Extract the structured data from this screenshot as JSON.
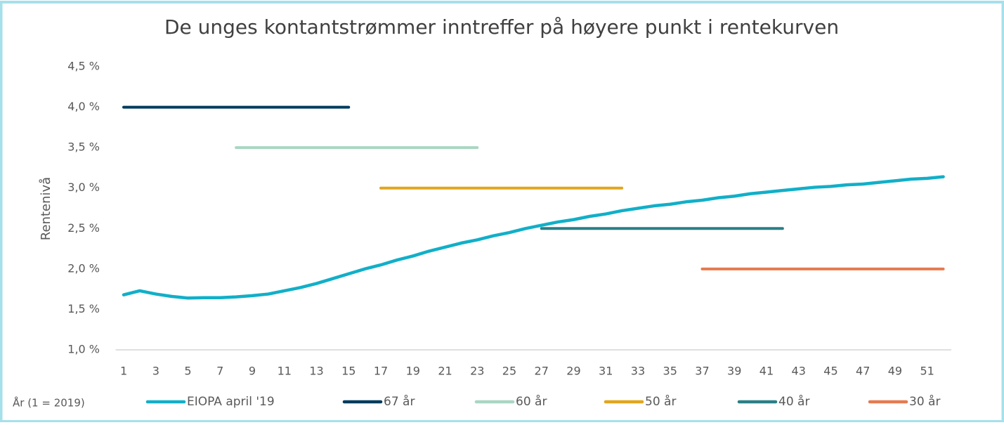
{
  "chart_data": {
    "type": "line",
    "title": "De unges kontantstrømmer inntreffer på høyere punkt i rentekurven",
    "x_label": "År (1 = 2019)",
    "y_label": "Rentenivå",
    "xlim": [
      0.5,
      52.5
    ],
    "xticks": [
      1,
      3,
      5,
      7,
      9,
      11,
      13,
      15,
      17,
      19,
      21,
      23,
      25,
      27,
      29,
      31,
      33,
      35,
      37,
      39,
      41,
      43,
      45,
      47,
      49,
      51
    ],
    "ylim": [
      1.0,
      4.5
    ],
    "yticks": [
      {
        "value": 1.0,
        "label": "1,0 %"
      },
      {
        "value": 1.5,
        "label": "1,5 %"
      },
      {
        "value": 2.0,
        "label": "2,0 %"
      },
      {
        "value": 2.5,
        "label": "2,5 %"
      },
      {
        "value": 3.0,
        "label": "3,0 %"
      },
      {
        "value": 3.5,
        "label": "3,5 %"
      },
      {
        "value": 4.0,
        "label": "4,0 %"
      },
      {
        "value": 4.5,
        "label": "4,5 %"
      }
    ],
    "grid": false,
    "legend": "bottom",
    "series": [
      {
        "name": "EIOPA april '19",
        "color": "#12afc8",
        "x": [
          1,
          2,
          3,
          4,
          5,
          6,
          7,
          8,
          9,
          10,
          11,
          12,
          13,
          14,
          15,
          16,
          17,
          18,
          19,
          20,
          21,
          22,
          23,
          24,
          25,
          26,
          27,
          28,
          29,
          30,
          31,
          32,
          33,
          34,
          35,
          36,
          37,
          38,
          39,
          40,
          41,
          42,
          43,
          44,
          45,
          46,
          47,
          48,
          49,
          50,
          51,
          52
        ],
        "values": [
          1.68,
          1.73,
          1.69,
          1.66,
          1.64,
          1.645,
          1.645,
          1.655,
          1.67,
          1.69,
          1.73,
          1.77,
          1.82,
          1.88,
          1.94,
          2.0,
          2.05,
          2.11,
          2.16,
          2.22,
          2.27,
          2.32,
          2.36,
          2.41,
          2.45,
          2.5,
          2.54,
          2.58,
          2.61,
          2.65,
          2.68,
          2.72,
          2.75,
          2.78,
          2.8,
          2.83,
          2.85,
          2.88,
          2.9,
          2.93,
          2.95,
          2.97,
          2.99,
          3.01,
          3.02,
          3.04,
          3.05,
          3.07,
          3.09,
          3.11,
          3.12,
          3.14
        ]
      },
      {
        "name": "67 år",
        "color": "#003a5d",
        "x": [
          1,
          15
        ],
        "values": [
          4.0,
          4.0
        ]
      },
      {
        "name": "60 år",
        "color": "#a9d5c3",
        "x": [
          8,
          23
        ],
        "values": [
          3.5,
          3.5
        ]
      },
      {
        "name": "50 år",
        "color": "#e1a61c",
        "x": [
          17,
          32
        ],
        "values": [
          3.0,
          3.0
        ]
      },
      {
        "name": "40 år",
        "color": "#2a7f86",
        "x": [
          27,
          42
        ],
        "values": [
          2.5,
          2.5
        ]
      },
      {
        "name": "30 år",
        "color": "#e57b51",
        "x": [
          37,
          52
        ],
        "values": [
          2.0,
          2.0
        ]
      }
    ]
  }
}
